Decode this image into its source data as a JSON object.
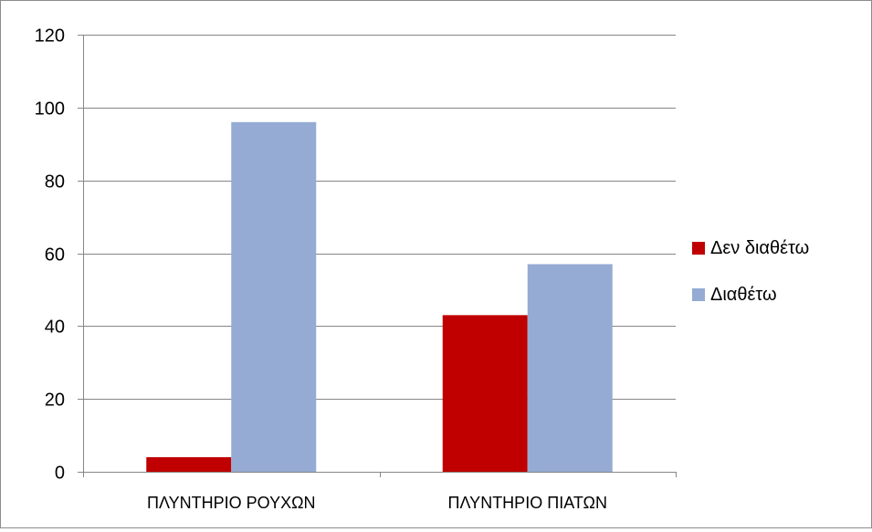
{
  "chart_data": {
    "type": "bar",
    "title": "",
    "xlabel": "",
    "ylabel": "",
    "categories": [
      "ΠΛΥΝΤΗΡΙΟ ΡΟΥΧΩΝ",
      "ΠΛΥΝΤΗΡΙΟ ΠΙΑΤΩΝ"
    ],
    "series": [
      {
        "name": "Δεν διαθέτω",
        "values": [
          4,
          43
        ],
        "color": "#c00000"
      },
      {
        "name": "Διαθέτω",
        "values": [
          96,
          57
        ],
        "color": "#95abd3"
      }
    ],
    "ylim": [
      0,
      120
    ],
    "yticks": [
      0,
      20,
      40,
      60,
      80,
      100,
      120
    ],
    "grid": true,
    "legend_position": "right"
  }
}
